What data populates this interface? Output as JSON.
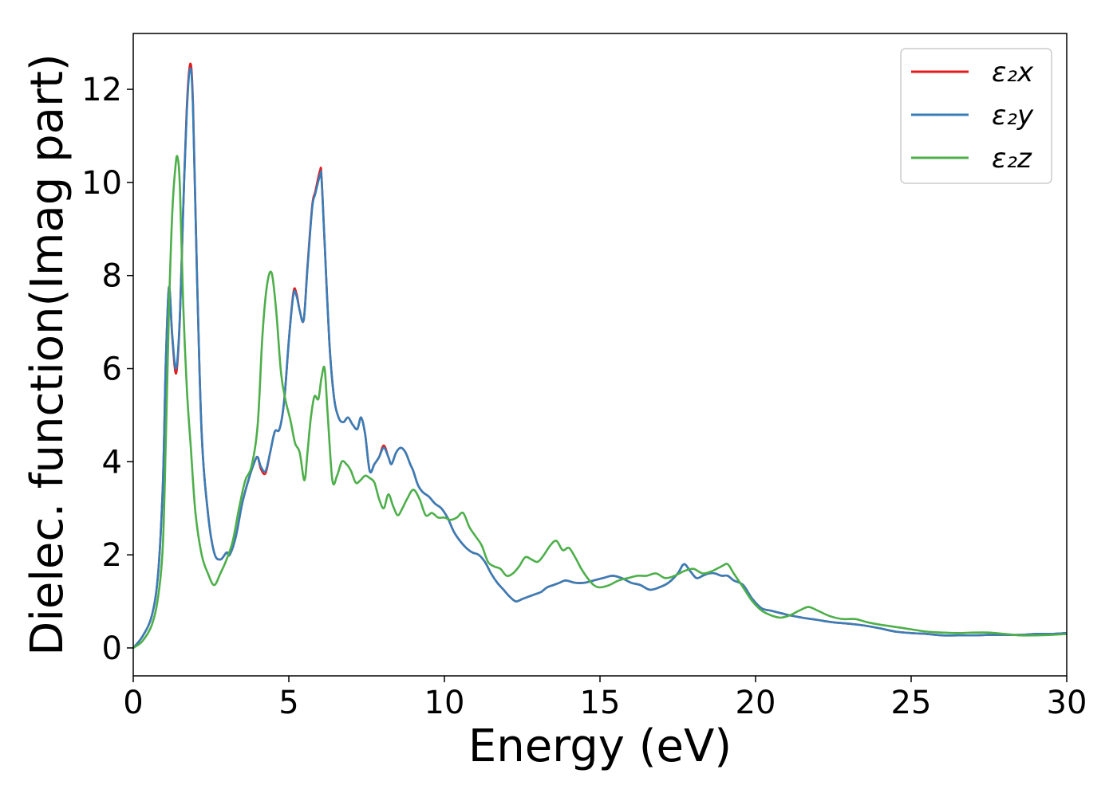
{
  "chart_data": {
    "type": "line",
    "title": "",
    "xlabel": "Energy (eV)",
    "ylabel": "Dielec. function(Imag part)",
    "xlim": [
      0,
      30
    ],
    "ylim": [
      -0.6,
      13.2
    ],
    "xticks": [
      0,
      5,
      10,
      15,
      20,
      25,
      30
    ],
    "yticks": [
      0,
      2,
      4,
      6,
      8,
      10,
      12
    ],
    "grid": false,
    "legend_position": "top-right",
    "series": [
      {
        "name": "ε₂x",
        "color": "#e41a1c",
        "x": [
          0,
          0.3,
          0.6,
          0.8,
          0.95,
          1.05,
          1.15,
          1.25,
          1.38,
          1.5,
          1.6,
          1.72,
          1.83,
          1.92,
          2.05,
          2.2,
          2.4,
          2.6,
          2.8,
          3.0,
          3.1,
          3.3,
          3.5,
          3.7,
          3.9,
          4.0,
          4.1,
          4.25,
          4.4,
          4.55,
          4.7,
          4.85,
          5.0,
          5.15,
          5.25,
          5.35,
          5.48,
          5.6,
          5.75,
          5.85,
          6.0,
          6.05,
          6.15,
          6.3,
          6.45,
          6.6,
          6.75,
          6.9,
          7.05,
          7.2,
          7.32,
          7.45,
          7.6,
          7.75,
          7.9,
          8.05,
          8.2,
          8.3,
          8.45,
          8.6,
          8.75,
          8.9,
          9.0,
          9.15,
          9.3,
          9.5,
          9.7,
          9.9,
          10.1,
          10.3,
          10.5,
          10.7,
          10.9,
          11.1,
          11.3,
          11.5,
          11.7,
          11.9,
          12.1,
          12.3,
          12.5,
          12.7,
          12.9,
          13.1,
          13.3,
          13.5,
          13.7,
          13.9,
          14.2,
          14.5,
          14.8,
          15.1,
          15.4,
          15.7,
          16.0,
          16.3,
          16.6,
          16.9,
          17.2,
          17.5,
          17.7,
          17.9,
          18.1,
          18.3,
          18.5,
          18.7,
          18.9,
          19.1,
          19.3,
          19.6,
          19.9,
          20.2,
          20.5,
          20.8,
          21.1,
          21.5,
          22.0,
          22.5,
          23.0,
          23.5,
          24.0,
          24.5,
          25.0,
          25.5,
          26.0,
          26.5,
          27.0,
          27.5,
          28.0,
          28.5,
          29.0,
          29.5,
          30.0
        ],
        "y": [
          0,
          0.25,
          0.7,
          1.6,
          3.5,
          6.2,
          7.75,
          6.7,
          5.9,
          7.1,
          9.3,
          11.6,
          12.55,
          11.7,
          8.0,
          4.6,
          2.9,
          2.05,
          1.9,
          2.05,
          2.0,
          2.4,
          3.1,
          3.6,
          4.0,
          4.1,
          3.85,
          3.75,
          4.2,
          4.65,
          4.7,
          5.3,
          6.6,
          7.65,
          7.6,
          7.25,
          7.05,
          8.2,
          9.5,
          9.8,
          10.25,
          10.15,
          8.7,
          6.6,
          5.4,
          4.95,
          4.85,
          4.95,
          4.8,
          4.7,
          4.95,
          4.6,
          3.8,
          3.95,
          4.1,
          4.35,
          4.1,
          3.95,
          4.2,
          4.3,
          4.2,
          3.95,
          3.8,
          3.5,
          3.35,
          3.25,
          3.1,
          3.0,
          2.8,
          2.5,
          2.3,
          2.15,
          2.05,
          2.0,
          1.85,
          1.6,
          1.4,
          1.25,
          1.1,
          1.0,
          1.05,
          1.1,
          1.15,
          1.2,
          1.3,
          1.35,
          1.4,
          1.45,
          1.4,
          1.4,
          1.45,
          1.5,
          1.55,
          1.5,
          1.4,
          1.35,
          1.25,
          1.3,
          1.4,
          1.6,
          1.8,
          1.65,
          1.5,
          1.55,
          1.6,
          1.6,
          1.55,
          1.55,
          1.45,
          1.35,
          1.05,
          0.85,
          0.8,
          0.75,
          0.7,
          0.65,
          0.6,
          0.55,
          0.52,
          0.48,
          0.42,
          0.35,
          0.32,
          0.3,
          0.27,
          0.27,
          0.27,
          0.28,
          0.28,
          0.28,
          0.3,
          0.3,
          0.32
        ]
      },
      {
        "name": "ε₂y",
        "color": "#377eb8",
        "x": [
          0,
          0.3,
          0.6,
          0.8,
          0.95,
          1.05,
          1.15,
          1.25,
          1.38,
          1.5,
          1.6,
          1.72,
          1.83,
          1.92,
          2.05,
          2.2,
          2.4,
          2.6,
          2.8,
          3.0,
          3.1,
          3.3,
          3.5,
          3.7,
          3.9,
          4.0,
          4.1,
          4.25,
          4.4,
          4.55,
          4.7,
          4.85,
          5.0,
          5.15,
          5.25,
          5.35,
          5.48,
          5.6,
          5.75,
          5.85,
          6.0,
          6.05,
          6.15,
          6.3,
          6.45,
          6.6,
          6.75,
          6.9,
          7.05,
          7.2,
          7.32,
          7.45,
          7.6,
          7.75,
          7.9,
          8.05,
          8.2,
          8.3,
          8.45,
          8.6,
          8.75,
          8.9,
          9.0,
          9.15,
          9.3,
          9.5,
          9.7,
          9.9,
          10.1,
          10.3,
          10.5,
          10.7,
          10.9,
          11.1,
          11.3,
          11.5,
          11.7,
          11.9,
          12.1,
          12.3,
          12.5,
          12.7,
          12.9,
          13.1,
          13.3,
          13.5,
          13.7,
          13.9,
          14.2,
          14.5,
          14.8,
          15.1,
          15.4,
          15.7,
          16.0,
          16.3,
          16.6,
          16.9,
          17.2,
          17.5,
          17.7,
          17.9,
          18.1,
          18.3,
          18.5,
          18.7,
          18.9,
          19.1,
          19.3,
          19.6,
          19.9,
          20.2,
          20.5,
          20.8,
          21.1,
          21.5,
          22.0,
          22.5,
          23.0,
          23.5,
          24.0,
          24.5,
          25.0,
          25.5,
          26.0,
          26.5,
          27.0,
          27.5,
          28.0,
          28.5,
          29.0,
          29.5,
          30.0
        ],
        "y": [
          0,
          0.25,
          0.7,
          1.6,
          3.5,
          6.2,
          7.75,
          6.75,
          6.0,
          7.15,
          9.3,
          11.5,
          12.45,
          11.6,
          8.0,
          4.6,
          2.9,
          2.05,
          1.9,
          2.05,
          2.0,
          2.4,
          3.1,
          3.6,
          4.0,
          4.1,
          3.9,
          3.8,
          4.2,
          4.65,
          4.7,
          5.3,
          6.6,
          7.6,
          7.55,
          7.25,
          7.05,
          8.15,
          9.45,
          9.75,
          10.15,
          10.1,
          8.7,
          6.6,
          5.4,
          4.95,
          4.85,
          4.95,
          4.8,
          4.7,
          4.95,
          4.6,
          3.8,
          3.95,
          4.1,
          4.3,
          4.1,
          3.95,
          4.2,
          4.3,
          4.2,
          3.95,
          3.8,
          3.5,
          3.35,
          3.25,
          3.1,
          3.0,
          2.8,
          2.5,
          2.3,
          2.15,
          2.05,
          2.0,
          1.85,
          1.6,
          1.4,
          1.25,
          1.1,
          1.0,
          1.05,
          1.1,
          1.15,
          1.2,
          1.3,
          1.35,
          1.4,
          1.45,
          1.4,
          1.4,
          1.45,
          1.5,
          1.55,
          1.5,
          1.4,
          1.35,
          1.25,
          1.3,
          1.4,
          1.6,
          1.8,
          1.65,
          1.5,
          1.55,
          1.6,
          1.6,
          1.55,
          1.55,
          1.45,
          1.35,
          1.05,
          0.85,
          0.8,
          0.75,
          0.7,
          0.65,
          0.6,
          0.55,
          0.52,
          0.48,
          0.42,
          0.35,
          0.32,
          0.3,
          0.27,
          0.27,
          0.27,
          0.28,
          0.28,
          0.28,
          0.3,
          0.3,
          0.32
        ]
      },
      {
        "name": "ε₂z",
        "color": "#4daf4a",
        "x": [
          0,
          0.3,
          0.6,
          0.8,
          0.95,
          1.05,
          1.15,
          1.25,
          1.35,
          1.42,
          1.5,
          1.6,
          1.72,
          1.85,
          2.0,
          2.2,
          2.4,
          2.6,
          2.8,
          3.0,
          3.2,
          3.4,
          3.6,
          3.8,
          4.0,
          4.15,
          4.3,
          4.45,
          4.6,
          4.75,
          4.9,
          5.05,
          5.2,
          5.35,
          5.5,
          5.6,
          5.7,
          5.82,
          5.95,
          6.05,
          6.15,
          6.25,
          6.4,
          6.55,
          6.7,
          6.85,
          7.0,
          7.15,
          7.3,
          7.45,
          7.6,
          7.75,
          7.9,
          8.05,
          8.2,
          8.35,
          8.5,
          8.65,
          8.8,
          9.0,
          9.2,
          9.4,
          9.6,
          9.8,
          10.0,
          10.2,
          10.4,
          10.6,
          10.8,
          11.0,
          11.2,
          11.4,
          11.6,
          11.8,
          12.0,
          12.2,
          12.4,
          12.6,
          12.8,
          13.0,
          13.2,
          13.4,
          13.6,
          13.8,
          14.0,
          14.2,
          14.4,
          14.6,
          14.8,
          15.0,
          15.3,
          15.6,
          15.9,
          16.2,
          16.5,
          16.8,
          17.1,
          17.4,
          17.7,
          18.0,
          18.3,
          18.6,
          18.9,
          19.1,
          19.3,
          19.6,
          19.9,
          20.2,
          20.5,
          20.8,
          21.1,
          21.4,
          21.7,
          22.0,
          22.4,
          22.8,
          23.2,
          23.6,
          24.0,
          24.5,
          25.0,
          25.5,
          26.0,
          26.5,
          27.0,
          27.5,
          28.0,
          28.5,
          29.0,
          29.5,
          30.0
        ],
        "y": [
          0,
          0.15,
          0.5,
          1.1,
          2.2,
          4.5,
          7.3,
          9.3,
          10.3,
          10.55,
          9.9,
          7.5,
          5.6,
          4.3,
          2.9,
          2.0,
          1.6,
          1.35,
          1.6,
          1.9,
          2.3,
          3.0,
          3.6,
          3.9,
          4.8,
          6.7,
          7.8,
          8.05,
          7.2,
          5.9,
          5.3,
          4.9,
          4.4,
          4.2,
          3.6,
          4.2,
          4.9,
          5.4,
          5.35,
          5.8,
          6.0,
          5.0,
          3.6,
          3.7,
          4.0,
          3.95,
          3.8,
          3.55,
          3.6,
          3.7,
          3.65,
          3.55,
          3.2,
          3.0,
          3.3,
          3.05,
          2.85,
          3.0,
          3.2,
          3.4,
          3.2,
          2.85,
          2.9,
          2.8,
          2.8,
          2.75,
          2.8,
          2.9,
          2.6,
          2.4,
          2.2,
          1.85,
          1.75,
          1.7,
          1.55,
          1.6,
          1.75,
          1.95,
          1.9,
          1.85,
          2.0,
          2.2,
          2.3,
          2.1,
          2.15,
          1.95,
          1.7,
          1.5,
          1.35,
          1.3,
          1.35,
          1.45,
          1.5,
          1.55,
          1.55,
          1.6,
          1.5,
          1.55,
          1.65,
          1.7,
          1.6,
          1.65,
          1.75,
          1.8,
          1.6,
          1.3,
          1.0,
          0.8,
          0.7,
          0.65,
          0.7,
          0.8,
          0.88,
          0.8,
          0.68,
          0.62,
          0.62,
          0.55,
          0.5,
          0.45,
          0.4,
          0.35,
          0.33,
          0.32,
          0.33,
          0.33,
          0.3,
          0.27,
          0.27,
          0.28,
          0.3
        ]
      }
    ]
  }
}
